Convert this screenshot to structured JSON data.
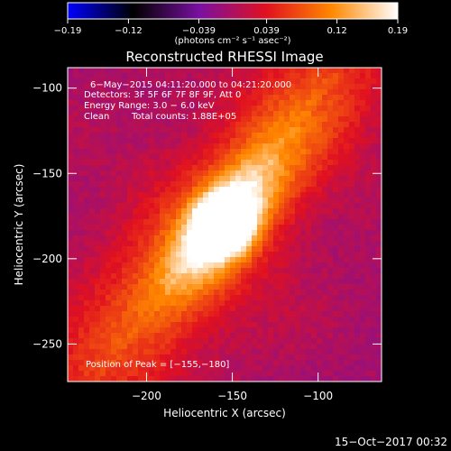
{
  "chart_data": {
    "type": "heatmap",
    "title": "Reconstructed RHESSI Image",
    "xlabel": "Heliocentric X (arcsec)",
    "ylabel": "Heliocentric Y (arcsec)",
    "xlim": [
      -246,
      -63
    ],
    "ylim": [
      -272,
      -88
    ],
    "x_ticks": [
      -200,
      -150,
      -100
    ],
    "y_ticks": [
      -100,
      -150,
      -200,
      -250
    ],
    "x_tick_labels": [
      "−200",
      "−150",
      "−100"
    ],
    "y_tick_labels": [
      "−100",
      "−150",
      "−200",
      "−250"
    ],
    "colorbar": {
      "min": -0.19,
      "max": 0.19,
      "ticks": [
        -0.19,
        -0.12,
        -0.039,
        0.039,
        0.12,
        0.19
      ],
      "tick_labels": [
        "−0.19",
        "−0.12",
        "−0.039",
        "0.039",
        "0.12",
        "0.19"
      ],
      "units": "(photons cm⁻² s⁻¹ asec⁻²)",
      "colors": [
        "#0000ff",
        "#000000",
        "#7a10a0",
        "#e01020",
        "#ff8800",
        "#ffffff"
      ]
    },
    "annotations": {
      "time_range": "6−May−2015 04:11:20.000 to 04:21:20.000",
      "detectors": "Detectors: 3F 5F 6F 7F 8F 9F, Att 0",
      "energy": "Energy Range: 3.0 − 6.0 keV",
      "method": "Clean",
      "counts": "Total counts: 1.88E+05",
      "peak": "Position of Peak = [−155,−180]"
    },
    "peak": {
      "x": -155,
      "y": -180,
      "value": 0.19
    },
    "source_orientation_deg": 52
  },
  "footer": {
    "timestamp": "15−Oct−2017 00:32"
  }
}
